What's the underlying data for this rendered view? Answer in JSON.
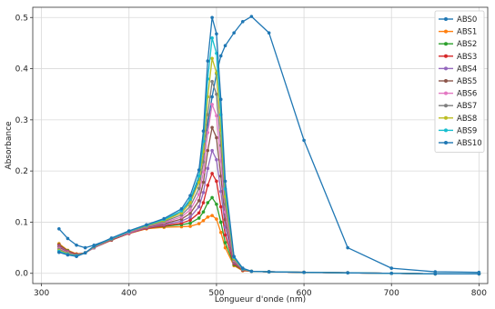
{
  "chart_data": {
    "type": "line",
    "title": "",
    "xlabel": "Longueur d'onde (nm)",
    "ylabel": "Absorbance",
    "xlim": [
      290,
      810
    ],
    "ylim": [
      -0.02,
      0.52
    ],
    "x_ticks": [
      300,
      400,
      500,
      600,
      700,
      800
    ],
    "y_ticks": [
      0.0,
      0.1,
      0.2,
      0.3,
      0.4,
      0.5
    ],
    "x_tick_labels": [
      "300",
      "400",
      "500",
      "600",
      "700",
      "800"
    ],
    "y_tick_labels": [
      "0.0",
      "0.1",
      "0.2",
      "0.3",
      "0.4",
      "0.5"
    ],
    "grid": true,
    "legend_position": "top-right",
    "x": [
      320,
      330,
      340,
      350,
      360,
      380,
      400,
      420,
      440,
      460,
      470,
      480,
      485,
      490,
      495,
      500,
      505,
      510,
      520,
      530,
      540,
      560,
      600,
      650,
      700,
      750,
      800
    ],
    "series": [
      {
        "name": "ABS0",
        "color": "#1f77b4",
        "values": [
          0.087,
          0.068,
          0.055,
          0.05,
          0.055,
          0.068,
          0.08,
          0.09,
          0.102,
          0.122,
          0.142,
          0.185,
          0.235,
          0.29,
          0.345,
          0.39,
          0.425,
          0.445,
          0.47,
          0.492,
          0.502,
          0.47,
          0.26,
          0.05,
          0.01,
          0.003,
          0.002
        ]
      },
      {
        "name": "ABS1",
        "color": "#ff7f0e",
        "values": [
          0.058,
          0.045,
          0.038,
          0.04,
          0.05,
          0.065,
          0.078,
          0.087,
          0.09,
          0.091,
          0.092,
          0.097,
          0.103,
          0.11,
          0.113,
          0.106,
          0.08,
          0.05,
          0.015,
          0.005,
          0.004,
          0.003,
          0.002,
          0.001,
          0.0,
          -0.001,
          -0.001
        ]
      },
      {
        "name": "ABS2",
        "color": "#2ca02c",
        "values": [
          0.056,
          0.044,
          0.037,
          0.04,
          0.05,
          0.065,
          0.078,
          0.088,
          0.092,
          0.095,
          0.098,
          0.108,
          0.12,
          0.138,
          0.148,
          0.135,
          0.1,
          0.06,
          0.017,
          0.006,
          0.004,
          0.003,
          0.002,
          0.001,
          0.0,
          -0.001,
          -0.001
        ]
      },
      {
        "name": "ABS3",
        "color": "#d62728",
        "values": [
          0.055,
          0.043,
          0.037,
          0.04,
          0.05,
          0.065,
          0.078,
          0.088,
          0.093,
          0.098,
          0.104,
          0.118,
          0.138,
          0.172,
          0.195,
          0.18,
          0.13,
          0.075,
          0.019,
          0.006,
          0.004,
          0.003,
          0.002,
          0.001,
          0.0,
          -0.001,
          -0.001
        ]
      },
      {
        "name": "ABS4",
        "color": "#9467bd",
        "values": [
          0.053,
          0.042,
          0.036,
          0.04,
          0.05,
          0.066,
          0.079,
          0.089,
          0.095,
          0.102,
          0.11,
          0.13,
          0.158,
          0.205,
          0.24,
          0.222,
          0.16,
          0.09,
          0.021,
          0.007,
          0.004,
          0.003,
          0.002,
          0.001,
          0.0,
          -0.001,
          -0.001
        ]
      },
      {
        "name": "ABS5",
        "color": "#8c564b",
        "values": [
          0.051,
          0.041,
          0.036,
          0.04,
          0.051,
          0.066,
          0.08,
          0.09,
          0.097,
          0.106,
          0.117,
          0.142,
          0.178,
          0.24,
          0.285,
          0.265,
          0.19,
          0.105,
          0.023,
          0.007,
          0.004,
          0.003,
          0.002,
          0.001,
          0.0,
          -0.001,
          -0.001
        ]
      },
      {
        "name": "ABS6",
        "color": "#e377c2",
        "values": [
          0.049,
          0.04,
          0.035,
          0.04,
          0.051,
          0.067,
          0.08,
          0.091,
          0.099,
          0.11,
          0.124,
          0.154,
          0.198,
          0.275,
          0.33,
          0.308,
          0.22,
          0.12,
          0.025,
          0.008,
          0.004,
          0.003,
          0.002,
          0.001,
          0.0,
          -0.001,
          -0.001
        ]
      },
      {
        "name": "ABS7",
        "color": "#7f7f7f",
        "values": [
          0.047,
          0.039,
          0.035,
          0.04,
          0.052,
          0.067,
          0.081,
          0.092,
          0.101,
          0.114,
          0.131,
          0.166,
          0.218,
          0.31,
          0.375,
          0.35,
          0.25,
          0.135,
          0.027,
          0.008,
          0.004,
          0.003,
          0.002,
          0.001,
          0.0,
          -0.001,
          -0.001
        ]
      },
      {
        "name": "ABS8",
        "color": "#bcbd22",
        "values": [
          0.045,
          0.038,
          0.034,
          0.04,
          0.052,
          0.068,
          0.082,
          0.093,
          0.103,
          0.118,
          0.138,
          0.178,
          0.238,
          0.345,
          0.42,
          0.392,
          0.28,
          0.15,
          0.029,
          0.009,
          0.004,
          0.003,
          0.002,
          0.001,
          0.0,
          -0.001,
          -0.001
        ]
      },
      {
        "name": "ABS9",
        "color": "#17becf",
        "values": [
          0.043,
          0.037,
          0.034,
          0.04,
          0.053,
          0.068,
          0.082,
          0.094,
          0.105,
          0.122,
          0.145,
          0.19,
          0.258,
          0.38,
          0.46,
          0.43,
          0.31,
          0.165,
          0.031,
          0.009,
          0.004,
          0.003,
          0.002,
          0.001,
          0.0,
          -0.001,
          -0.001
        ]
      },
      {
        "name": "ABS10",
        "color": "#1f77b4",
        "values": [
          0.041,
          0.036,
          0.033,
          0.04,
          0.053,
          0.069,
          0.083,
          0.095,
          0.107,
          0.126,
          0.152,
          0.202,
          0.278,
          0.415,
          0.5,
          0.468,
          0.34,
          0.18,
          0.033,
          0.01,
          0.004,
          0.003,
          0.002,
          0.001,
          0.0,
          -0.001,
          -0.001
        ]
      }
    ]
  }
}
